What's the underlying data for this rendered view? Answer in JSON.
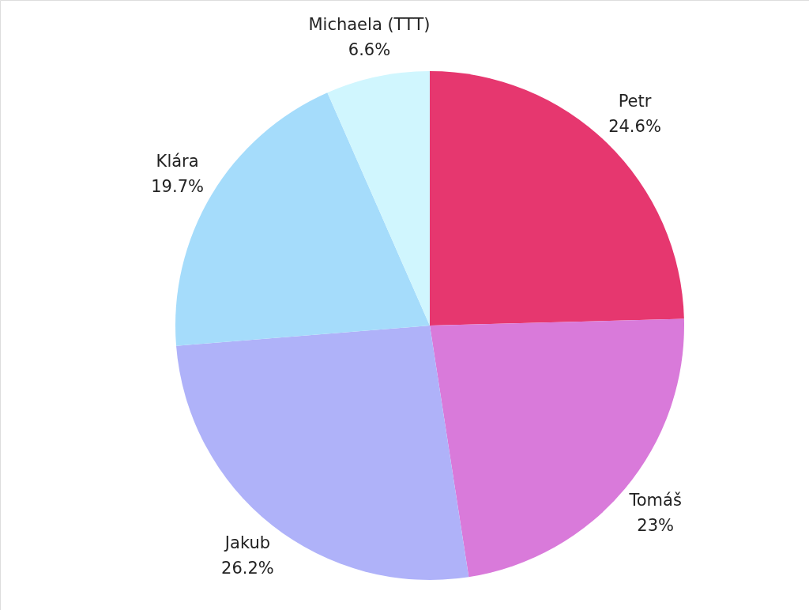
{
  "chart_data": {
    "type": "pie",
    "categories": [
      "Petr",
      "Tomáš",
      "Jakub",
      "Klára",
      "Michaela (TTT)"
    ],
    "values": [
      24.6,
      23,
      26.2,
      19.7,
      6.6
    ],
    "value_labels": [
      "24.6%",
      "23%",
      "26.2%",
      "19.7%",
      "6.6%"
    ],
    "colors": [
      "#e6376f",
      "#d97ada",
      "#afb2f9",
      "#a5dcfb",
      "#d0f6fe"
    ]
  }
}
